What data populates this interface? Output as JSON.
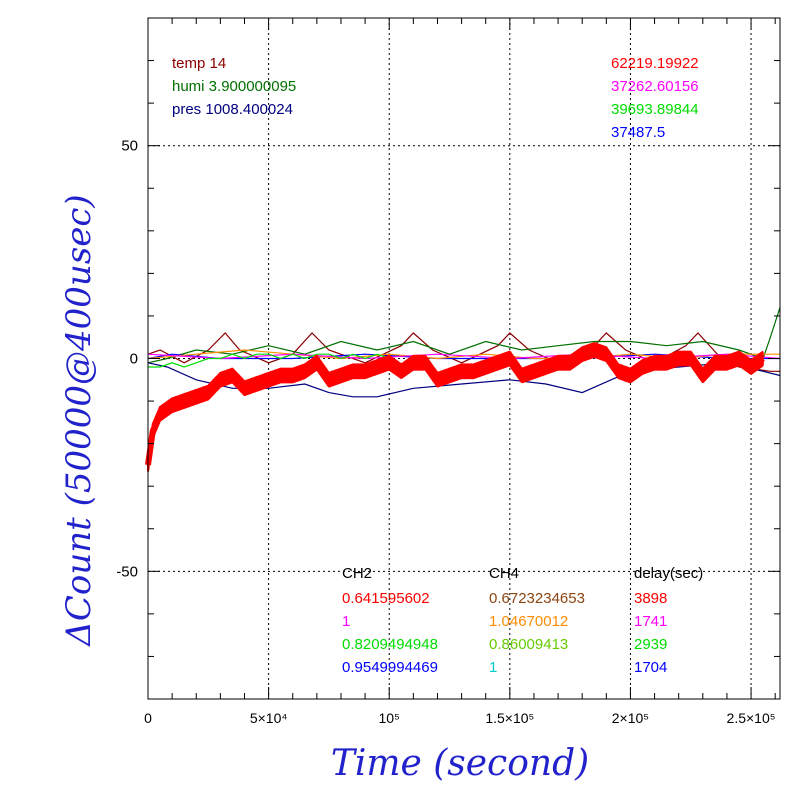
{
  "chart_data": {
    "type": "line",
    "xlabel": "Time (second)",
    "ylabel": "ΔCount (50000@400usec)",
    "xlim": [
      0,
      262000
    ],
    "ylim": [
      -80,
      80
    ],
    "grid": true,
    "x_ticks": [
      {
        "value": 0,
        "label": "0"
      },
      {
        "value": 50000,
        "label": "5×10⁴"
      },
      {
        "value": 100000,
        "label": "10⁵"
      },
      {
        "value": 150000,
        "label": "1.5×10⁵"
      },
      {
        "value": 200000,
        "label": "2×10⁵"
      },
      {
        "value": 250000,
        "label": "2.5×10⁵"
      }
    ],
    "y_ticks": [
      {
        "value": 50,
        "label": "50"
      },
      {
        "value": 0,
        "label": "0"
      },
      {
        "value": -50,
        "label": "-50"
      }
    ],
    "env_info": [
      {
        "text": "temp 14",
        "color": "#8b0000"
      },
      {
        "text": "humi 3.900000095",
        "color": "#007000"
      },
      {
        "text": "pres 1008.400024",
        "color": "#000080"
      }
    ],
    "channel_values": [
      {
        "text": "62219.19922",
        "color": "#ff0000"
      },
      {
        "text": "37262.60156",
        "color": "#ff00ff"
      },
      {
        "text": "39693.89844",
        "color": "#00dd00"
      },
      {
        "text": "37487.5",
        "color": "#0000ff"
      }
    ],
    "table": {
      "headers": [
        "CH2",
        "CH4",
        "delay(sec)"
      ],
      "rows": [
        {
          "cells": [
            "0.641595602",
            "0.6723234653",
            "3898"
          ],
          "colors": [
            "#ff0000",
            "#8b4513",
            "#ff0000"
          ]
        },
        {
          "cells": [
            "1",
            "1.04670012",
            "1741"
          ],
          "colors": [
            "#ff00ff",
            "#ff8c00",
            "#ff00ff"
          ]
        },
        {
          "cells": [
            "0.8209494948",
            "0.86009413",
            "2939"
          ],
          "colors": [
            "#00dd00",
            "#66cc00",
            "#00dd00"
          ]
        },
        {
          "cells": [
            "0.9549994469",
            "1",
            "1704"
          ],
          "colors": [
            "#0000ff",
            "#00cccc",
            "#0000ff"
          ]
        }
      ]
    },
    "series": [
      {
        "color": "#8b0000",
        "x": [
          0,
          5000,
          15000,
          25000,
          32000,
          38000,
          50000,
          60000,
          68000,
          75000,
          90000,
          105000,
          110000,
          118000,
          130000,
          145000,
          150000,
          158000,
          170000,
          185000,
          190000,
          198000,
          210000,
          223000,
          228000,
          236000,
          245000,
          258000,
          262000
        ],
        "y": [
          1,
          2,
          -1,
          2,
          6,
          2,
          -1,
          1,
          6,
          2,
          -1,
          3,
          6,
          2,
          -1,
          3,
          6,
          2,
          -1,
          3,
          6,
          2,
          -1,
          3,
          6,
          1,
          -2,
          -3,
          -3
        ]
      },
      {
        "color": "#007000",
        "x": [
          0,
          8000,
          20000,
          35000,
          50000,
          65000,
          80000,
          95000,
          110000,
          125000,
          140000,
          155000,
          170000,
          185000,
          200000,
          215000,
          230000,
          245000,
          255000,
          258000,
          262000
        ],
        "y": [
          -1,
          0,
          2,
          1,
          3,
          1,
          4,
          2,
          4,
          1,
          4,
          2,
          3,
          4,
          4,
          3,
          4,
          2,
          0,
          5,
          12
        ]
      },
      {
        "color": "#000080",
        "x": [
          0,
          8000,
          20000,
          35000,
          50000,
          65000,
          75000,
          85000,
          95000,
          110000,
          130000,
          150000,
          165000,
          180000,
          200000,
          220000,
          240000,
          255000,
          262000
        ],
        "y": [
          -1,
          -2,
          -5,
          -7,
          -7,
          -6,
          -8,
          -9,
          -9,
          -7,
          -6,
          -5,
          -6,
          -8,
          -3,
          -2,
          -1,
          -3,
          -4
        ]
      },
      {
        "color": "#0000ff",
        "x": [
          0,
          10000,
          30000,
          60000,
          90000,
          120000,
          150000,
          180000,
          210000,
          240000,
          262000
        ],
        "y": [
          0,
          1,
          0,
          0,
          1,
          0,
          0,
          0,
          1,
          0,
          0
        ]
      },
      {
        "color": "#ff8c00",
        "x": [
          0,
          20000,
          40000,
          60000,
          80000,
          100000,
          120000,
          140000,
          160000,
          180000,
          200000,
          220000,
          240000,
          262000
        ],
        "y": [
          0,
          1,
          2,
          1,
          0,
          1,
          0,
          1,
          0,
          0,
          1,
          0,
          1,
          1
        ]
      },
      {
        "color": "#ff00ff",
        "x": [
          0,
          30000,
          60000,
          90000,
          120000,
          150000,
          180000,
          210000,
          240000,
          262000
        ],
        "y": [
          1,
          0,
          1,
          0,
          1,
          0,
          1,
          0,
          1,
          0
        ]
      },
      {
        "color": "#00dd00",
        "x": [
          0,
          5000,
          10000,
          15000,
          20000,
          25000,
          30000,
          35000,
          40000,
          45000,
          50000,
          55000,
          60000,
          65000,
          70000,
          75000,
          80000,
          85000,
          90000,
          95000,
          100000
        ],
        "y": [
          -2,
          -2,
          -1,
          -2,
          -1,
          0,
          0,
          1,
          0,
          1,
          1,
          0,
          1,
          0,
          1,
          1,
          0,
          1,
          0,
          1,
          0
        ]
      },
      {
        "color": "#ff0000",
        "thick": true,
        "x": [
          0,
          2000,
          5000,
          10000,
          15000,
          20000,
          25000,
          30000,
          35000,
          40000,
          45000,
          50000,
          55000,
          60000,
          65000,
          70000,
          75000,
          80000,
          85000,
          90000,
          95000,
          100000,
          105000,
          110000,
          115000,
          120000,
          125000,
          130000,
          135000,
          140000,
          145000,
          150000,
          155000,
          160000,
          165000,
          170000,
          175000,
          180000,
          185000,
          190000,
          195000,
          200000,
          205000,
          210000,
          215000,
          220000,
          225000,
          230000,
          235000,
          240000,
          245000,
          250000,
          255000
        ],
        "y": [
          -25,
          -17,
          -13,
          -11,
          -10,
          -9,
          -8,
          -5,
          -4,
          -7,
          -6,
          -5,
          -4,
          -4,
          -3,
          -1,
          -5,
          -4,
          -3,
          -3,
          -2,
          -1,
          -3,
          -1,
          -1,
          -5,
          -4,
          -3,
          -3,
          -2,
          -1,
          0,
          -4,
          -3,
          -2,
          -1,
          -1,
          1,
          2,
          1,
          -3,
          -4,
          -2,
          -1,
          -1,
          0,
          0,
          -4,
          -1,
          -1,
          0,
          -2,
          0
        ]
      }
    ]
  }
}
